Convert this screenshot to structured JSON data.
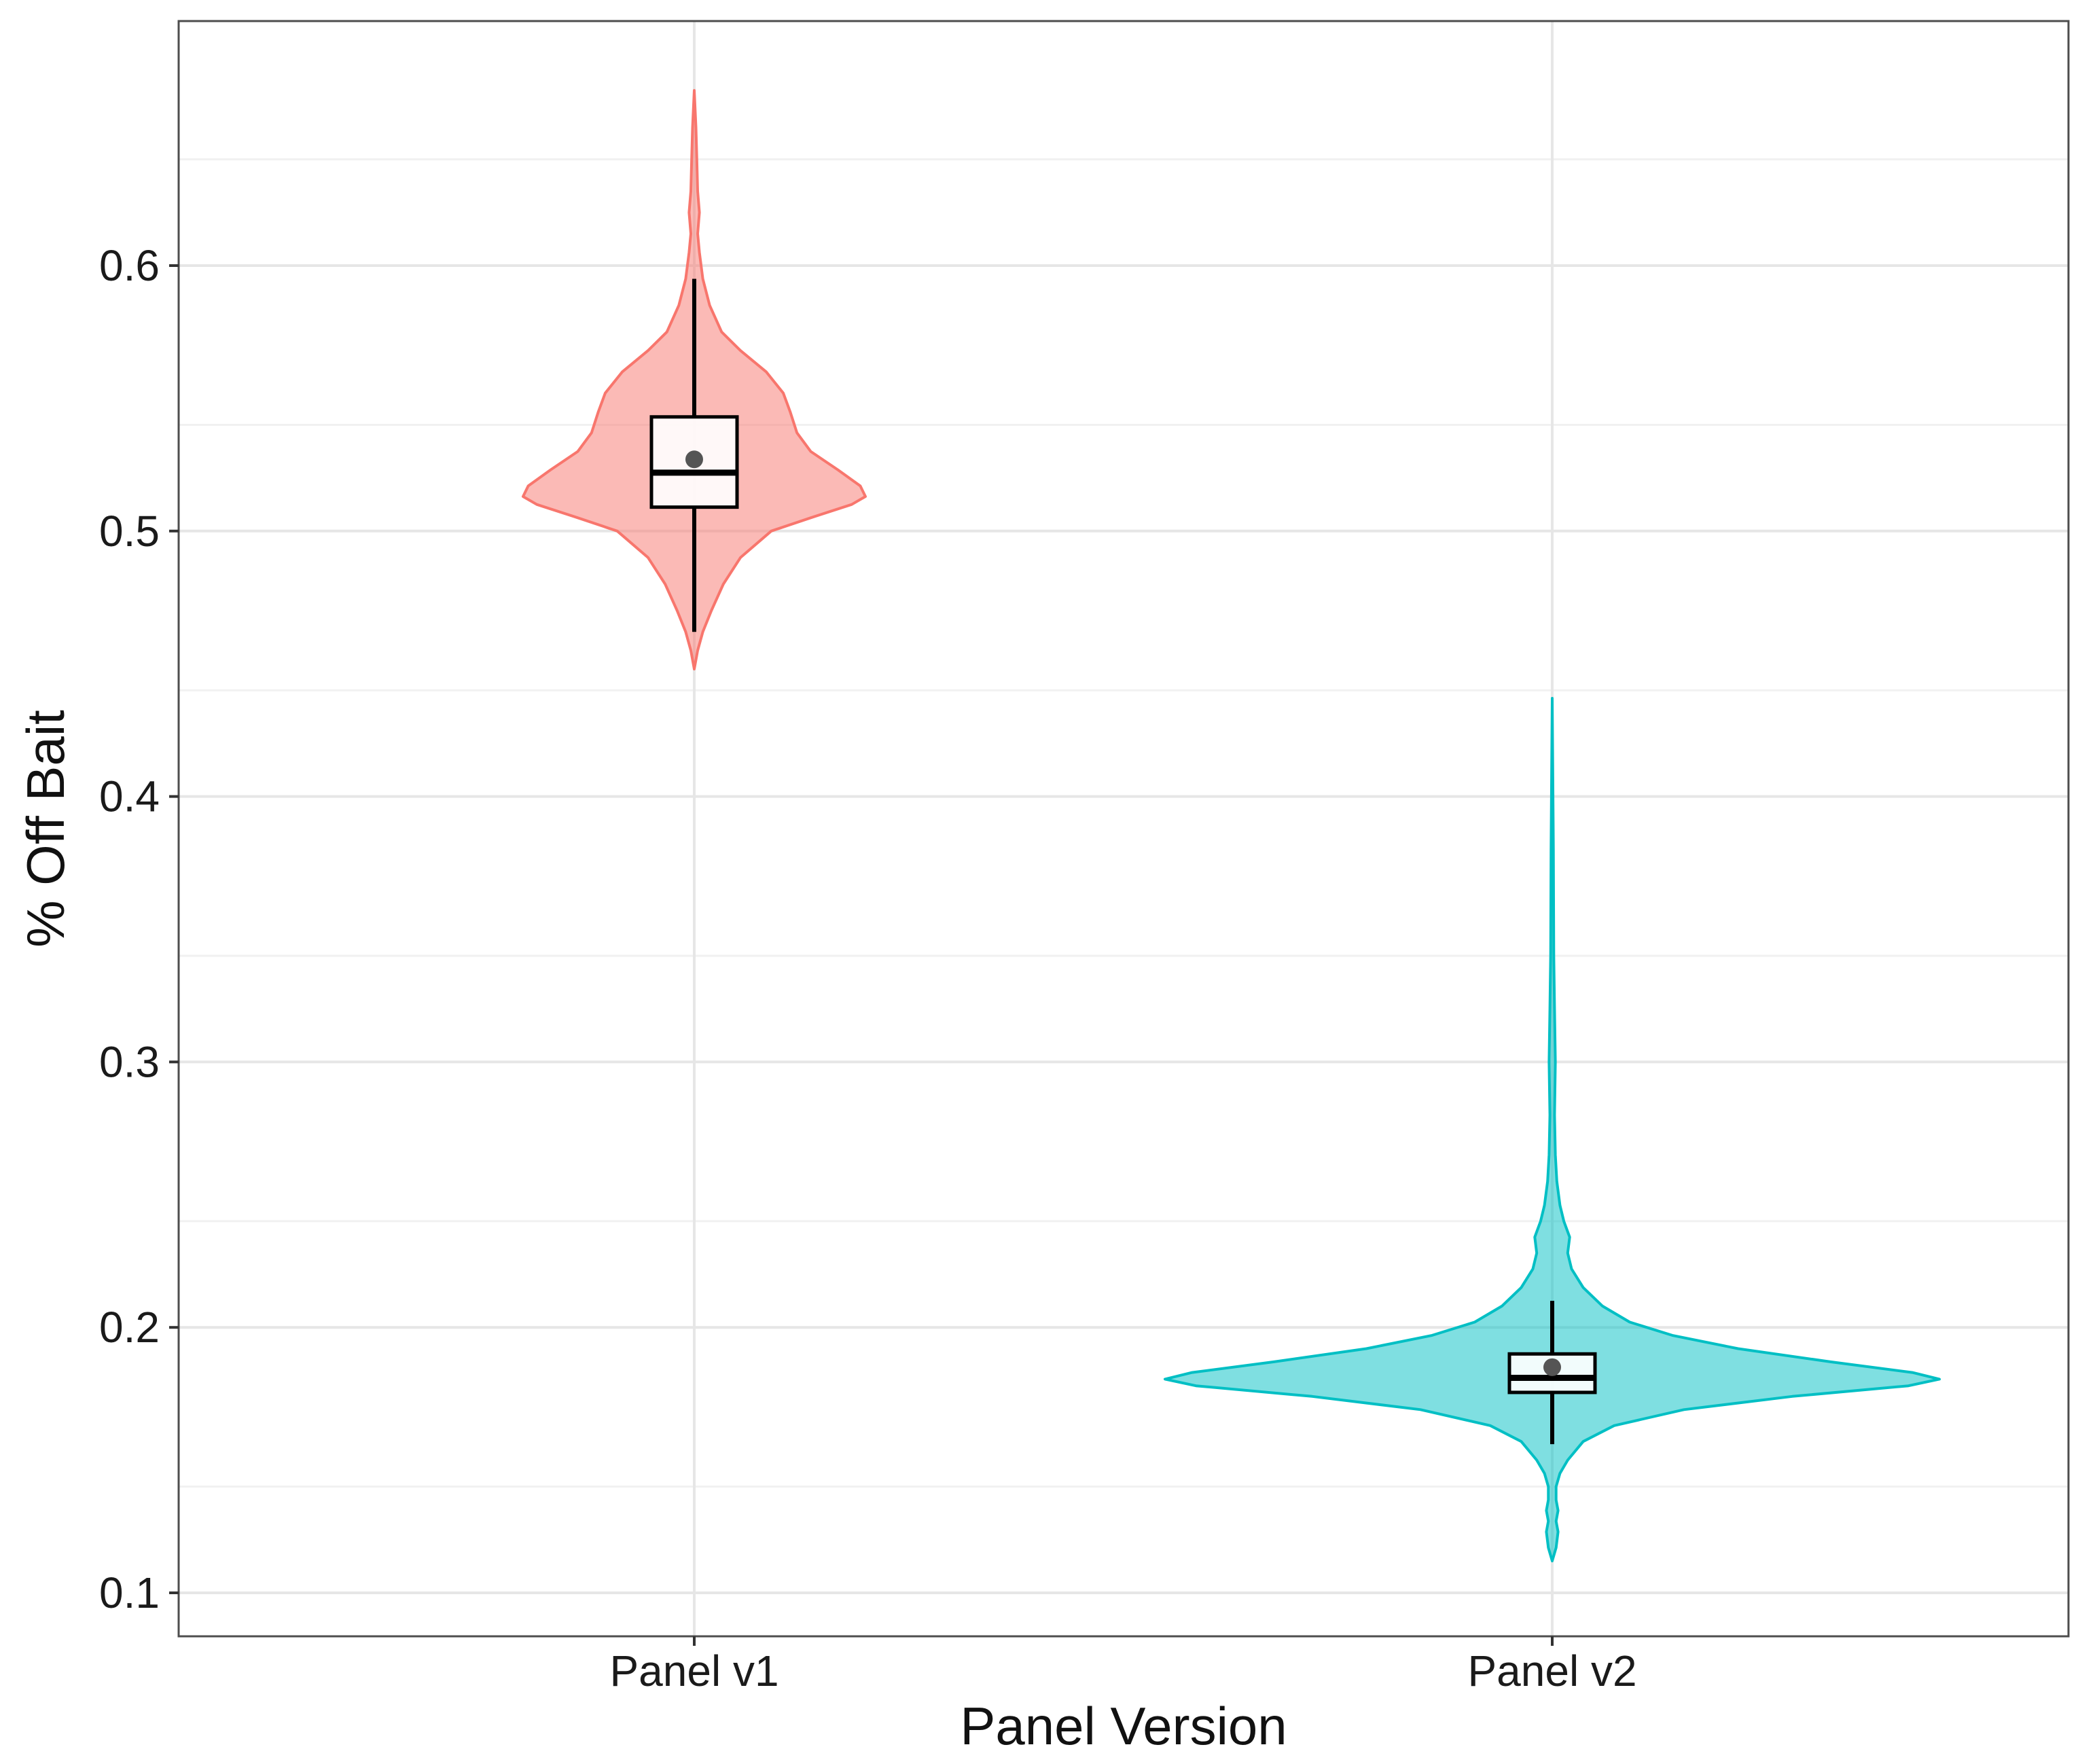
{
  "chart_data": {
    "type": "violin",
    "xlabel": "Panel Version",
    "ylabel": "% Off Bait",
    "ylim": [
      0.09,
      0.7
    ],
    "y_ticks": [
      0.1,
      0.2,
      0.3,
      0.4,
      0.5,
      0.6
    ],
    "y_tick_labels": [
      "0.1",
      "0.2",
      "0.3",
      "0.4",
      "0.5",
      "0.6"
    ],
    "categories": [
      "Panel v1",
      "Panel v2"
    ],
    "grid": true,
    "legend": "none",
    "series": [
      {
        "category": "Panel v1",
        "fill": "#f8766d",
        "box": {
          "whisker_low": 0.462,
          "q1": 0.509,
          "median": 0.522,
          "q3": 0.543,
          "whisker_high": 0.595,
          "mean": 0.527
        },
        "density": [
          [
            0.448,
            0.0
          ],
          [
            0.455,
            0.02
          ],
          [
            0.462,
            0.05
          ],
          [
            0.47,
            0.1
          ],
          [
            0.48,
            0.17
          ],
          [
            0.49,
            0.27
          ],
          [
            0.5,
            0.45
          ],
          [
            0.505,
            0.68
          ],
          [
            0.51,
            0.92
          ],
          [
            0.513,
            1.0
          ],
          [
            0.517,
            0.97
          ],
          [
            0.523,
            0.84
          ],
          [
            0.53,
            0.68
          ],
          [
            0.537,
            0.6
          ],
          [
            0.545,
            0.56
          ],
          [
            0.552,
            0.52
          ],
          [
            0.56,
            0.42
          ],
          [
            0.568,
            0.27
          ],
          [
            0.575,
            0.16
          ],
          [
            0.585,
            0.09
          ],
          [
            0.595,
            0.05
          ],
          [
            0.605,
            0.03
          ],
          [
            0.612,
            0.02
          ],
          [
            0.62,
            0.03
          ],
          [
            0.628,
            0.02
          ],
          [
            0.64,
            0.015
          ],
          [
            0.652,
            0.01
          ],
          [
            0.666,
            0.0
          ]
        ]
      },
      {
        "category": "Panel v2",
        "fill": "#00bfc4",
        "box": {
          "whisker_low": 0.156,
          "q1": 0.1755,
          "median": 0.181,
          "q3": 0.19,
          "whisker_high": 0.21,
          "mean": 0.185
        },
        "density": [
          [
            0.112,
            0.0
          ],
          [
            0.117,
            0.01
          ],
          [
            0.123,
            0.015
          ],
          [
            0.127,
            0.01
          ],
          [
            0.131,
            0.015
          ],
          [
            0.135,
            0.01
          ],
          [
            0.14,
            0.01
          ],
          [
            0.145,
            0.02
          ],
          [
            0.15,
            0.04
          ],
          [
            0.157,
            0.08
          ],
          [
            0.163,
            0.16
          ],
          [
            0.169,
            0.34
          ],
          [
            0.174,
            0.62
          ],
          [
            0.178,
            0.92
          ],
          [
            0.1805,
            1.0
          ],
          [
            0.183,
            0.93
          ],
          [
            0.187,
            0.72
          ],
          [
            0.192,
            0.48
          ],
          [
            0.197,
            0.31
          ],
          [
            0.202,
            0.2
          ],
          [
            0.208,
            0.13
          ],
          [
            0.215,
            0.08
          ],
          [
            0.222,
            0.05
          ],
          [
            0.228,
            0.04
          ],
          [
            0.234,
            0.045
          ],
          [
            0.24,
            0.03
          ],
          [
            0.246,
            0.02
          ],
          [
            0.255,
            0.012
          ],
          [
            0.265,
            0.008
          ],
          [
            0.28,
            0.006
          ],
          [
            0.3,
            0.008
          ],
          [
            0.32,
            0.006
          ],
          [
            0.34,
            0.004
          ],
          [
            0.38,
            0.003
          ],
          [
            0.437,
            0.0
          ]
        ]
      }
    ]
  }
}
